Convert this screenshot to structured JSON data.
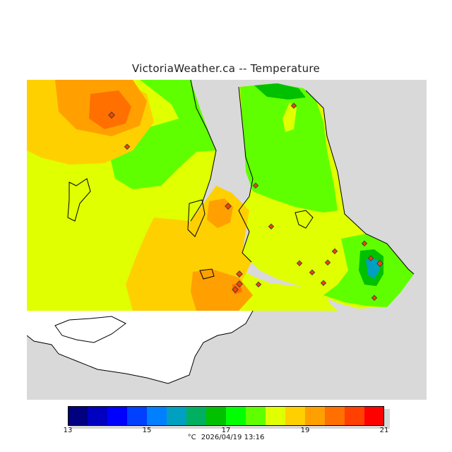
{
  "title": "VictoriaWeather.ca -- Temperature",
  "legend": {
    "colors": [
      "#000080",
      "#0000c0",
      "#0000ff",
      "#0040ff",
      "#0080ff",
      "#00a0c0",
      "#00b060",
      "#00c000",
      "#00ff00",
      "#60ff00",
      "#e0ff00",
      "#ffd000",
      "#ffa000",
      "#ff7000",
      "#ff4000",
      "#ff0000"
    ],
    "tick_labels": [
      "13",
      "15",
      "17",
      "19",
      "21"
    ],
    "unit": "°C",
    "timestamp": "2026/04/19 13:16"
  }
}
